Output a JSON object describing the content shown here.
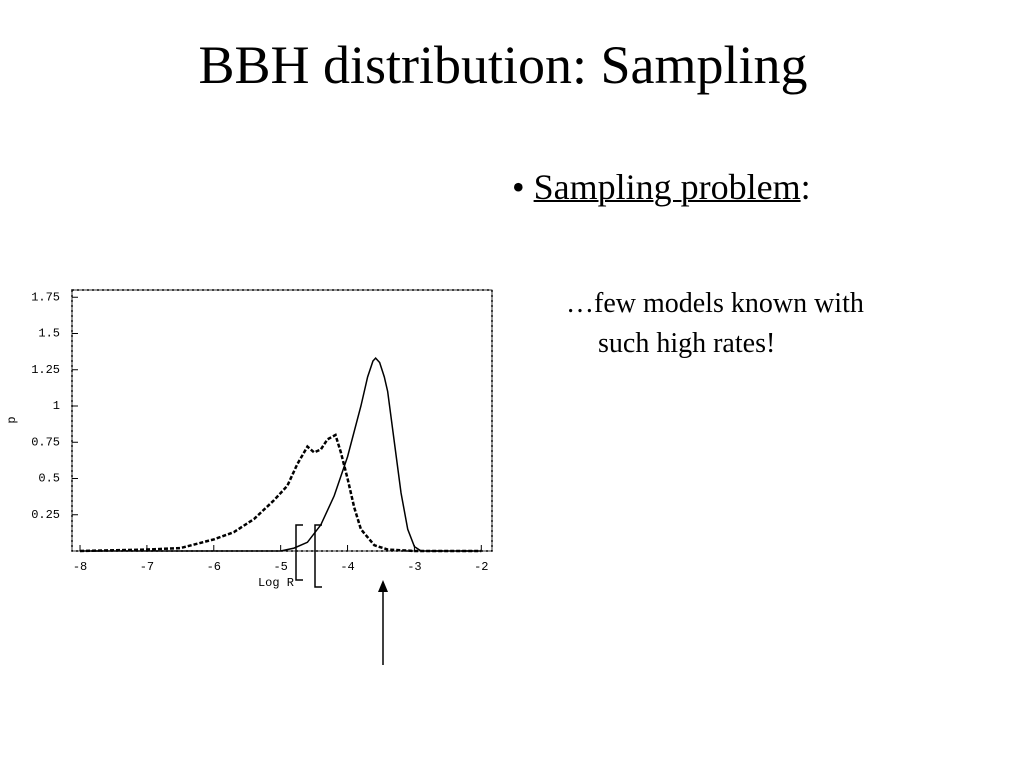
{
  "title": "BBH distribution: Sampling",
  "bullet": {
    "label": "Sampling problem",
    "suffix": ":"
  },
  "subtext": [
    "…few models known with",
    "such high rates!"
  ],
  "chart_data": {
    "type": "line",
    "x_label": "Log  R",
    "y_label": "p",
    "xlim": [
      -8.12,
      -1.84
    ],
    "ylim": [
      0,
      1.8
    ],
    "xticks": [
      -8,
      -7,
      -6,
      -5,
      -4,
      -3,
      -2
    ],
    "yticks": [
      0.25,
      0.5,
      0.75,
      1,
      1.25,
      1.5,
      1.75
    ],
    "series": [
      {
        "color": "#000000",
        "dash": false,
        "x": [
          -8,
          -5,
          -4.8,
          -4.6,
          -4.4,
          -4.2,
          -4.0,
          -3.8,
          -3.7,
          -3.62,
          -3.58,
          -3.52,
          -3.45,
          -3.4,
          -3.3,
          -3.2,
          -3.1,
          -3.0,
          -2.9,
          -2
        ],
        "values": [
          0,
          0,
          0.02,
          0.06,
          0.18,
          0.38,
          0.65,
          1.0,
          1.2,
          1.31,
          1.33,
          1.3,
          1.2,
          1.1,
          0.75,
          0.4,
          0.15,
          0.03,
          0,
          0
        ]
      },
      {
        "color": "#000000",
        "dash": true,
        "x": [
          -8,
          -7,
          -6.5,
          -6.0,
          -5.7,
          -5.4,
          -5.1,
          -4.9,
          -4.75,
          -4.6,
          -4.5,
          -4.4,
          -4.3,
          -4.18,
          -4.1,
          -4.0,
          -3.9,
          -3.8,
          -3.6,
          -3.4,
          -3.0,
          -2
        ],
        "values": [
          0,
          0.01,
          0.02,
          0.08,
          0.13,
          0.22,
          0.35,
          0.45,
          0.6,
          0.72,
          0.68,
          0.7,
          0.77,
          0.8,
          0.68,
          0.5,
          0.3,
          0.15,
          0.04,
          0.01,
          0,
          0
        ]
      }
    ]
  }
}
